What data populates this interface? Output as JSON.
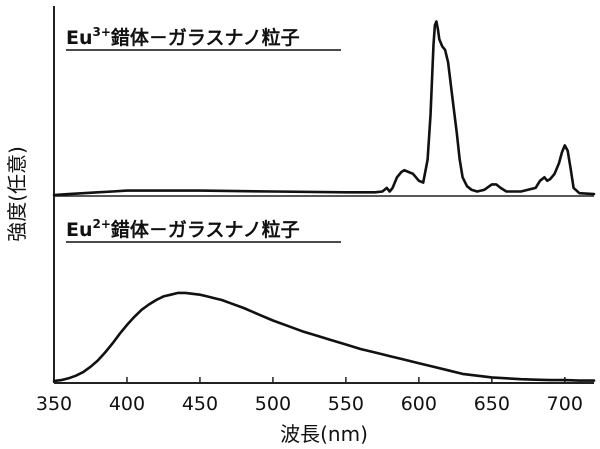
{
  "chart_data": {
    "type": "line",
    "xlabel": "波長(nm)",
    "ylabel": "強度(任意)",
    "xlim": [
      350,
      720
    ],
    "x_ticks": [
      350,
      400,
      450,
      500,
      550,
      600,
      650,
      700
    ],
    "panels": [
      {
        "title_main": "Eu",
        "title_sup": "3+",
        "title_rest": "錯体－ガラスナノ粒子",
        "ylim": [
          0,
          100
        ],
        "series": [
          {
            "x": [
              350,
              360,
              370,
              380,
              390,
              400,
              420,
              450,
              500,
              550,
              560,
              570,
              575,
              578,
              580,
              582,
              585,
              588,
              590,
              593,
              596,
              600,
              603,
              606,
              608,
              610,
              611,
              612,
              613,
              614,
              616,
              618,
              620,
              623,
              626,
              628,
              630,
              633,
              636,
              640,
              645,
              650,
              653,
              656,
              660,
              670,
              680,
              683,
              686,
              688,
              690,
              693,
              696,
              698,
              700,
              702,
              704,
              706,
              710,
              720
            ],
            "y": [
              0,
              0.5,
              1,
              1.5,
              2,
              2.5,
              2.5,
              2.5,
              2,
              1.5,
              1.5,
              1.5,
              2,
              4,
              2,
              4,
              10,
              13,
              14,
              13,
              12,
              8,
              7,
              20,
              45,
              85,
              96,
              98,
              94,
              88,
              84,
              82,
              75,
              55,
              35,
              20,
              10,
              5,
              3,
              2,
              3,
              6,
              6,
              4,
              2,
              2,
              4,
              8,
              10,
              8,
              9,
              12,
              18,
              24,
              28,
              25,
              15,
              4,
              1,
              0.5
            ]
          }
        ]
      },
      {
        "title_main": "Eu",
        "title_sup": "2+",
        "title_rest": "錯体－ガラスナノ粒子",
        "ylim": [
          0,
          100
        ],
        "series": [
          {
            "x": [
              350,
              355,
              360,
              365,
              370,
              375,
              380,
              385,
              390,
              395,
              400,
              405,
              410,
              415,
              420,
              425,
              430,
              435,
              440,
              445,
              450,
              455,
              460,
              465,
              470,
              480,
              490,
              500,
              510,
              520,
              530,
              540,
              550,
              560,
              570,
              580,
              590,
              600,
              610,
              620,
              630,
              640,
              650,
              660,
              670,
              680,
              690,
              700,
              710,
              720
            ],
            "y": [
              0,
              1,
              3,
              6,
              10,
              16,
              23,
              32,
              42,
              53,
              63,
              72,
              80,
              86,
              91,
              95,
              97,
              99,
              99,
              98,
              97,
              95,
              93,
              91,
              88,
              82,
              75,
              68,
              62,
              56,
              51,
              46,
              41,
              36,
              32,
              28,
              24,
              20,
              16,
              12,
              8,
              6,
              4,
              3,
              2,
              1.5,
              1,
              1,
              0.5,
              0.5
            ]
          }
        ]
      }
    ]
  }
}
